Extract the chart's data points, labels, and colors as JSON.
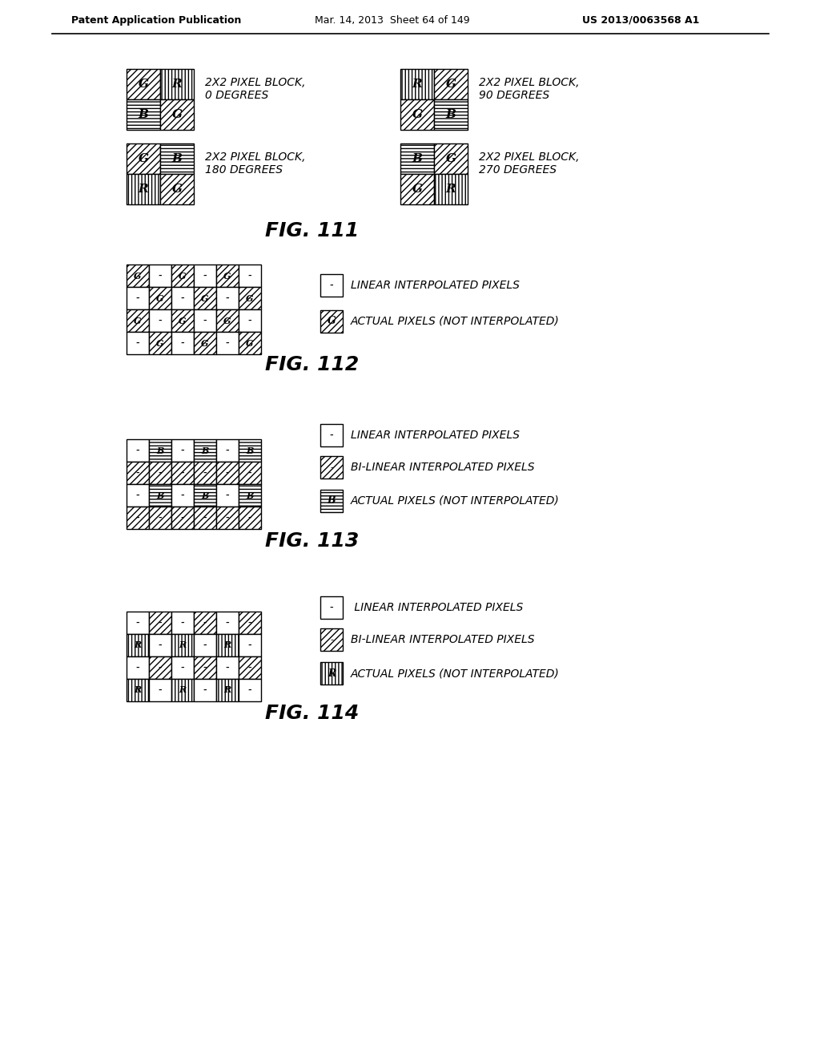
{
  "header_left": "Patent Application Publication",
  "header_mid": "Mar. 14, 2013  Sheet 64 of 149",
  "header_right": "US 2013/0063568 A1",
  "bg_color": "#ffffff"
}
